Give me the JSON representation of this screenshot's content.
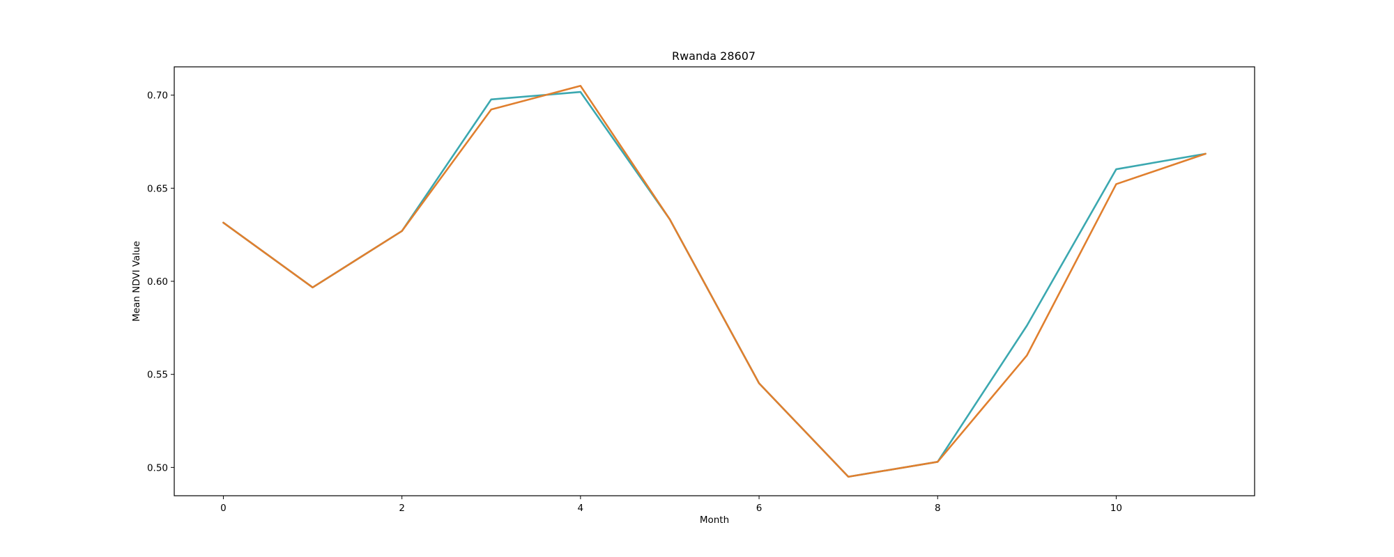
{
  "chart_data": {
    "type": "line",
    "title": "Rwanda 28607",
    "xlabel": "Month",
    "ylabel": "Mean NDVI Value",
    "x": [
      0,
      1,
      2,
      3,
      4,
      5,
      6,
      7,
      8,
      9,
      10,
      11
    ],
    "xlim": [
      -0.55,
      11.55
    ],
    "ylim": [
      0.4848,
      0.7152
    ],
    "xticks": [
      0,
      2,
      4,
      6,
      8,
      10
    ],
    "xtick_labels": [
      "0",
      "2",
      "4",
      "6",
      "8",
      "10"
    ],
    "yticks": [
      0.5,
      0.55,
      0.6,
      0.65,
      0.7
    ],
    "ytick_labels": [
      "0.50",
      "0.55",
      "0.60",
      "0.65",
      "0.70"
    ],
    "grid": false,
    "legend": "none",
    "series": [
      {
        "color": "#3ba8b0",
        "values": [
          0.6315,
          0.5967,
          0.627,
          0.6977,
          0.7017,
          0.6333,
          0.5452,
          0.495,
          0.503,
          0.5762,
          0.6602,
          0.6685
        ]
      },
      {
        "color": "#e07f2e",
        "values": [
          0.6315,
          0.5967,
          0.627,
          0.6923,
          0.705,
          0.6333,
          0.5452,
          0.495,
          0.503,
          0.5602,
          0.6522,
          0.6685
        ]
      }
    ]
  }
}
